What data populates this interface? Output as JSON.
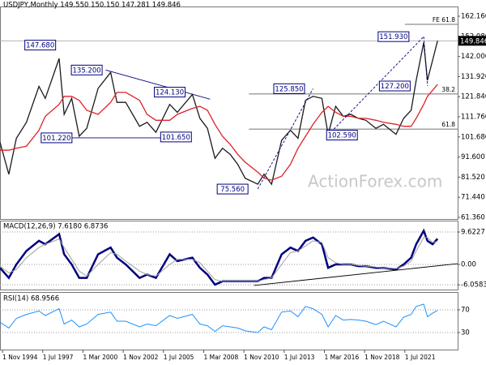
{
  "chart_data": {
    "type": "line",
    "title": "USDJPY,Monthly  149.550 150.150 147.281 149.846",
    "x": [
      "1994-09",
      "1995-04",
      "1995-10",
      "1996-06",
      "1997-04",
      "1997-09",
      "1998-08",
      "1998-12",
      "1999-06",
      "1999-12",
      "2000-06",
      "2001-03",
      "2002-01",
      "2002-06",
      "2003-01",
      "2003-12",
      "2004-06",
      "2005-01",
      "2005-12",
      "2006-06",
      "2007-06",
      "2007-12",
      "2008-06",
      "2008-12",
      "2009-06",
      "2009-12",
      "2010-06",
      "2010-12",
      "2011-10",
      "2012-03",
      "2012-09",
      "2013-05",
      "2013-12",
      "2014-06",
      "2014-12",
      "2015-06",
      "2016-01",
      "2016-06",
      "2016-12",
      "2017-06",
      "2017-12",
      "2018-06",
      "2018-12",
      "2019-08",
      "2020-02",
      "2020-12",
      "2021-06",
      "2021-12",
      "2022-04",
      "2022-10",
      "2023-01",
      "2023-05",
      "2023-09"
    ],
    "xlim": [
      "1994-09",
      "2025-01"
    ],
    "xticks": [
      {
        "value": "1994-11",
        "label": "1 Nov 1994"
      },
      {
        "value": "1997-07",
        "label": "1 Jul 1997"
      },
      {
        "value": "2000-03",
        "label": "1 Mar 2000"
      },
      {
        "value": "2002-11",
        "label": "1 Nov 2002"
      },
      {
        "value": "2005-07",
        "label": "1 Jul 2005"
      },
      {
        "value": "2008-03",
        "label": "1 Mar 2008"
      },
      {
        "value": "2010-11",
        "label": "1 Nov 2010"
      },
      {
        "value": "2013-07",
        "label": "1 Jul 2013"
      },
      {
        "value": "2016-03",
        "label": "1 Mar 2016"
      },
      {
        "value": "2018-11",
        "label": "1 Nov 2018"
      },
      {
        "value": "2021-07",
        "label": "1 Jul 2021"
      }
    ],
    "ylim": [
      60.55,
      167.04
    ],
    "yticks": [
      {
        "value": 162.16,
        "label": "162.160"
      },
      {
        "value": 152.08,
        "label": "152.080"
      },
      {
        "value": 142,
        "label": "142.000"
      },
      {
        "value": 131.92,
        "label": "131.920"
      },
      {
        "value": 121.84,
        "label": "121.840"
      },
      {
        "value": 111.76,
        "label": "111.760"
      },
      {
        "value": 101.68,
        "label": "101.680"
      },
      {
        "value": 91.6,
        "label": "91.600"
      },
      {
        "value": 81.52,
        "label": "81.520"
      },
      {
        "value": 71.44,
        "label": "71.440"
      },
      {
        "value": 61.36,
        "label": "61.360"
      }
    ],
    "series": [
      {
        "color": "#1a1a1a",
        "values": [
          99,
          83,
          101,
          109,
          127,
          121,
          141,
          113,
          121,
          102,
          106,
          126,
          134,
          119,
          119,
          107,
          109,
          104,
          118,
          114,
          123,
          111,
          106,
          91,
          96,
          93,
          88,
          81,
          78,
          83,
          78,
          100,
          105,
          101,
          120,
          122,
          121,
          103,
          117,
          112,
          113,
          111,
          110,
          106,
          108,
          103,
          111,
          115,
          130,
          149,
          130,
          140,
          149.846
        ]
      },
      {
        "color": "#e0202a",
        "values": [
          95,
          95,
          96,
          97,
          105,
          112,
          118,
          122,
          122,
          120,
          115,
          113,
          119,
          124,
          124,
          120,
          113,
          110,
          110,
          113,
          116,
          117,
          115,
          108,
          102,
          98,
          93,
          89,
          84,
          81,
          80,
          82,
          88,
          96,
          102,
          108,
          114,
          117,
          114,
          112,
          112,
          111,
          111,
          110,
          109,
          108,
          107,
          107,
          111,
          118,
          122,
          125,
          128
        ]
      }
    ],
    "last_price": 149.846,
    "annotations": [
      {
        "value": 147.68,
        "label": "147.680",
        "date": "1997-05"
      },
      {
        "value": 135.2,
        "label": "135.200",
        "date": "2000-06"
      },
      {
        "value": 124.13,
        "label": "124.130",
        "date": "2005-12"
      },
      {
        "value": 101.22,
        "label": "101.220",
        "date": "1998-06"
      },
      {
        "value": 101.65,
        "label": "101.650",
        "date": "2006-05"
      },
      {
        "value": 75.56,
        "label": "75.560",
        "date": "2010-02"
      },
      {
        "value": 125.85,
        "label": "125.850",
        "date": "2013-11"
      },
      {
        "value": 102.59,
        "label": "102.590",
        "date": "2017-05"
      },
      {
        "value": 127.2,
        "label": "127.200",
        "date": "2020-11"
      },
      {
        "value": 151.93,
        "label": "151.930",
        "date": "2020-10"
      }
    ],
    "trendlines": [
      {
        "from": [
          "2001-09",
          135.2
        ],
        "to": [
          "2008-08",
          120.6
        ],
        "dash": false
      },
      {
        "from": [
          "1998-01",
          101.22
        ],
        "to": [
          "2007-04",
          101.22
        ],
        "dash": false
      },
      {
        "from": [
          "2011-10",
          75.56
        ],
        "to": [
          "2015-06",
          125.85
        ],
        "dash": true
      },
      {
        "from": [
          "2016-06",
          102.59
        ],
        "to": [
          "2022-10",
          151.93
        ],
        "dash": true
      },
      {
        "from": [
          "2022-10",
          151.93
        ],
        "to": [
          "2023-01",
          127.2
        ],
        "dash": true
      }
    ],
    "levels": [
      {
        "label": "FE 61.8",
        "value": 158.1,
        "from": "2021-07"
      },
      {
        "label": "38.2",
        "value": 123.2,
        "from": "2011-03"
      },
      {
        "label": "61.8",
        "value": 105.6,
        "from": "2011-03"
      }
    ],
    "watermark": "ActionForex.com",
    "indicators": [
      {
        "title": "MACD(12,26,9) 7.6180 6.8736",
        "ylim": [
          -7.46,
          13.0
        ],
        "yticks": [
          9.6227,
          {
            "value": 0,
            "label": "0.00"
          },
          -6.0583
        ],
        "series": [
          {
            "color": "#000080",
            "width": 2.5,
            "values": [
              -1,
              -4,
              0,
              4,
              7,
              6,
              9,
              3,
              0,
              -4,
              -4,
              3,
              5,
              2,
              0,
              -4,
              -3,
              -4,
              3,
              1,
              2,
              -1,
              -3,
              -6,
              -5,
              -5,
              -5,
              -5,
              -5,
              -4,
              -4,
              3,
              5,
              4,
              7,
              8,
              6,
              -1,
              0,
              0,
              0,
              -0.5,
              -0.5,
              -1,
              -1,
              -1.5,
              0,
              2,
              6,
              10,
              7,
              6,
              7.618
            ]
          },
          {
            "color": "#a0a0a0",
            "width": 1,
            "values": [
              -0.5,
              -2.5,
              -1.5,
              2,
              5,
              6,
              7.5,
              5,
              1.5,
              -2,
              -3.5,
              0,
              3.5,
              3,
              1,
              -2,
              -3,
              -3.5,
              0,
              1.5,
              1.5,
              0.5,
              -2,
              -4.5,
              -5,
              -5,
              -5,
              -5,
              -5,
              -4.5,
              -4,
              0,
              3.5,
              4,
              5.5,
              7,
              6.5,
              2,
              0.5,
              0,
              0,
              -0.3,
              -0.5,
              -0.8,
              -1,
              -1.2,
              -0.5,
              1,
              4,
              8,
              8,
              6.5,
              6.8736
            ]
          }
        ],
        "trendline": {
          "from": [
            "2011-07",
            -6.25
          ],
          "to": [
            "2025-01",
            0.24
          ]
        }
      },
      {
        "title": "RSI(14) 68.9566",
        "ylim": [
          0,
          100
        ],
        "yticks": [
          70,
          30
        ],
        "series": [
          {
            "color": "#1e90ff",
            "width": 1,
            "values": [
              48,
              38,
              55,
              62,
              68,
              60,
              72,
              45,
              52,
              40,
              45,
              62,
              66,
              50,
              50,
              40,
              45,
              42,
              60,
              55,
              62,
              45,
              42,
              32,
              42,
              40,
              38,
              33,
              30,
              40,
              35,
              66,
              68,
              58,
              76,
              72,
              62,
              40,
              60,
              52,
              53,
              52,
              50,
              44,
              50,
              40,
              57,
              62,
              76,
              80,
              58,
              64,
              68.9566
            ]
          }
        ]
      }
    ]
  }
}
